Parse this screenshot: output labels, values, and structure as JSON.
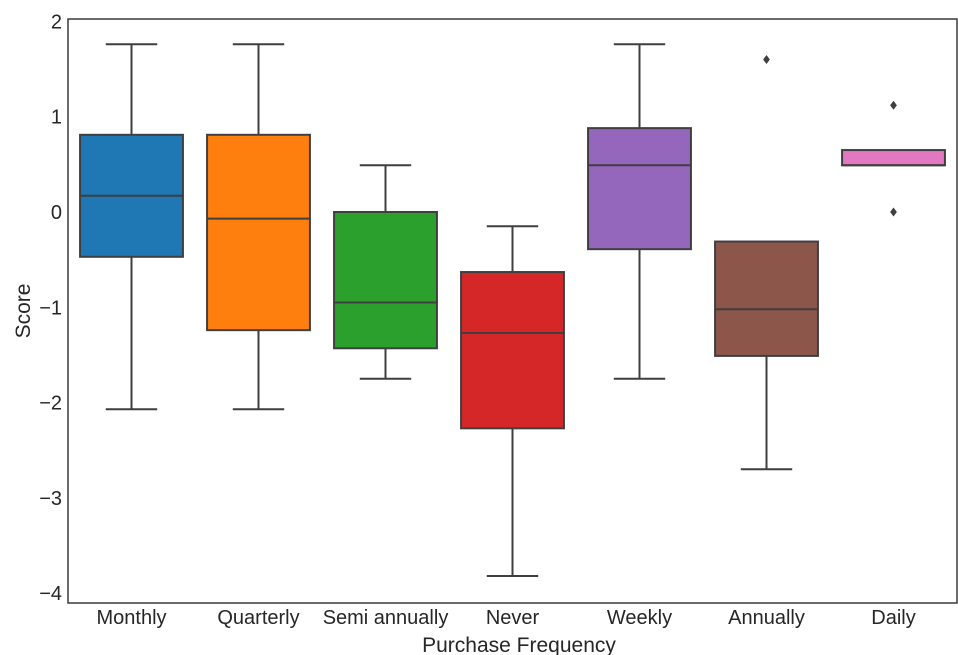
{
  "chart_data": {
    "type": "box",
    "xlabel": "Purchase Frequency",
    "ylabel": "Score",
    "ylim": [
      -4.1,
      2.05
    ],
    "yticks": [
      2,
      1,
      0,
      -1,
      -2,
      -3,
      -4
    ],
    "ytick_labels": [
      "2",
      "1",
      "0",
      "−1",
      "−2",
      "−3",
      "−4"
    ],
    "grid": false,
    "categories": [
      "Monthly",
      "Quarterly",
      "Semi annually",
      "Never",
      "Weekly",
      "Annually",
      "Daily"
    ],
    "boxes": [
      {
        "category": "Monthly",
        "color": "#1f77b4",
        "whisker_low": -2.07,
        "q1": -0.47,
        "median": 0.17,
        "q3": 0.81,
        "whisker_high": 1.76,
        "outliers": []
      },
      {
        "category": "Quarterly",
        "color": "#ff7f0e",
        "whisker_low": -2.07,
        "q1": -1.24,
        "median": -0.07,
        "q3": 0.81,
        "whisker_high": 1.76,
        "outliers": []
      },
      {
        "category": "Semi annually",
        "color": "#2ca02c",
        "whisker_low": -1.75,
        "q1": -1.43,
        "median": -0.95,
        "q3": 0.0,
        "whisker_high": 0.49,
        "outliers": []
      },
      {
        "category": "Never",
        "color": "#d62728",
        "whisker_low": -3.82,
        "q1": -2.27,
        "median": -1.27,
        "q3": -0.63,
        "whisker_high": -0.15,
        "outliers": []
      },
      {
        "category": "Weekly",
        "color": "#9467bd",
        "whisker_low": -1.75,
        "q1": -0.39,
        "median": 0.49,
        "q3": 0.88,
        "whisker_high": 1.76,
        "outliers": []
      },
      {
        "category": "Annually",
        "color": "#8c564b",
        "whisker_low": -2.7,
        "q1": -1.51,
        "median": -1.02,
        "q3": -0.31,
        "whisker_high": -0.31,
        "outliers": [
          1.6
        ]
      },
      {
        "category": "Daily",
        "color": "#e377c2",
        "whisker_low": 0.49,
        "q1": 0.49,
        "median": 0.49,
        "q3": 0.65,
        "whisker_high": 0.65,
        "outliers": [
          1.12,
          0.0
        ]
      }
    ]
  }
}
